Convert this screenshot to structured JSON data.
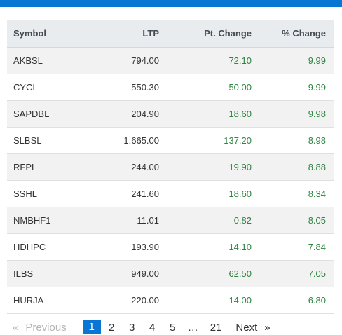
{
  "header_color": "#0a76d3",
  "table": {
    "columns": [
      "Symbol",
      "LTP",
      "Pt. Change",
      "% Change"
    ],
    "rows": [
      {
        "symbol": "AKBSL",
        "ltp": "794.00",
        "pt_change": "72.10",
        "pct_change": "9.99"
      },
      {
        "symbol": "CYCL",
        "ltp": "550.30",
        "pt_change": "50.00",
        "pct_change": "9.99"
      },
      {
        "symbol": "SAPDBL",
        "ltp": "204.90",
        "pt_change": "18.60",
        "pct_change": "9.98"
      },
      {
        "symbol": "SLBSL",
        "ltp": "1,665.00",
        "pt_change": "137.20",
        "pct_change": "8.98"
      },
      {
        "symbol": "RFPL",
        "ltp": "244.00",
        "pt_change": "19.90",
        "pct_change": "8.88"
      },
      {
        "symbol": "SSHL",
        "ltp": "241.60",
        "pt_change": "18.60",
        "pct_change": "8.34"
      },
      {
        "symbol": "NMBHF1",
        "ltp": "11.01",
        "pt_change": "0.82",
        "pct_change": "8.05"
      },
      {
        "symbol": "HDHPC",
        "ltp": "193.90",
        "pt_change": "14.10",
        "pct_change": "7.84"
      },
      {
        "symbol": "ILBS",
        "ltp": "949.00",
        "pt_change": "62.50",
        "pct_change": "7.05"
      },
      {
        "symbol": "HURJA",
        "ltp": "220.00",
        "pt_change": "14.00",
        "pct_change": "6.80"
      }
    ],
    "positive_color": "#2e8540"
  },
  "pagination": {
    "prev_arrow": "«",
    "prev_label": "Previous",
    "pages": [
      "1",
      "2",
      "3",
      "4",
      "5"
    ],
    "active_page": "1",
    "ellipsis": "…",
    "last_page": "21",
    "next_label": "Next",
    "next_arrow": "»"
  }
}
